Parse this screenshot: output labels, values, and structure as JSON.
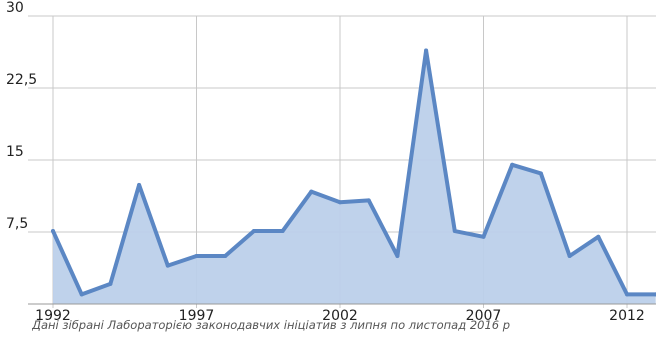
{
  "chart_data": {
    "type": "area",
    "title": "",
    "xlabel": "",
    "ylabel": "",
    "x": [
      1992,
      1993,
      1994,
      1995,
      1996,
      1997,
      1998,
      1999,
      2000,
      2001,
      2002,
      2003,
      2004,
      2005,
      2006,
      2007,
      2008,
      2009,
      2010,
      2011,
      2012,
      2013
    ],
    "series": [
      {
        "values": [
          7.6,
          1.0,
          2.1,
          12.4,
          4.0,
          5.0,
          5.0,
          7.6,
          7.6,
          11.7,
          10.6,
          10.8,
          5.0,
          26.4,
          7.6,
          7.0,
          14.5,
          13.6,
          5.0,
          7.0,
          1.0,
          1.0
        ]
      }
    ],
    "xlim": [
      1992,
      2013
    ],
    "ylim": [
      0,
      30
    ],
    "x_ticks": [
      "1992",
      "1997",
      "2002",
      "2007",
      "2012"
    ],
    "y_ticks": [
      "30",
      "22,5",
      "15",
      "7,5"
    ],
    "x_tick_values": [
      1992,
      1997,
      2002,
      2007,
      2012
    ],
    "y_tick_values": [
      30,
      22.5,
      15,
      7.5
    ],
    "grid": true,
    "colors": {
      "line": "#5b87c4",
      "fill": "#bcd0ea",
      "grid": "#c8c8c8"
    }
  },
  "footer": {
    "source_note": "Дані зібрані Лабораторією законодавчих ініціатив з липня по листопад 2016 р"
  }
}
